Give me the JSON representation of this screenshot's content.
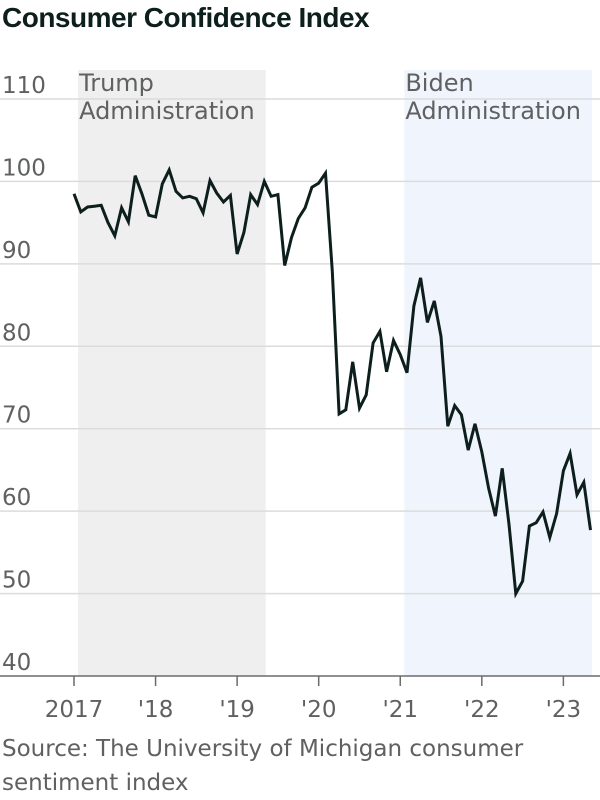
{
  "chart_data": {
    "type": "line",
    "title": "Consumer Confidence Index",
    "source": "Source: The University of Michigan consumer sentiment index",
    "ylim": [
      40,
      110
    ],
    "yticks": [
      40,
      50,
      60,
      70,
      80,
      90,
      100,
      110
    ],
    "xlim": [
      2017.0,
      2023.4
    ],
    "xticks": [
      {
        "value": 2017,
        "label": "2017"
      },
      {
        "value": 2018,
        "label": "'18"
      },
      {
        "value": 2019,
        "label": "'19"
      },
      {
        "value": 2020,
        "label": "'20"
      },
      {
        "value": 2021,
        "label": "'21"
      },
      {
        "value": 2022,
        "label": "'22"
      },
      {
        "value": 2023,
        "label": "'23"
      }
    ],
    "grid": true,
    "line_color": "#0d1f1c",
    "bands": [
      {
        "label_line1": "Trump",
        "label_line2": "Administration",
        "start": 2017.05,
        "end": 2019.35,
        "color": "#efeff0"
      },
      {
        "label_line1": "Biden",
        "label_line2": "Administration",
        "start": 2021.05,
        "end": 2023.35,
        "color": "#f0f4fc"
      }
    ],
    "series": [
      {
        "x": [
          2017.0,
          2017.083,
          2017.167,
          2017.25,
          2017.333,
          2017.417,
          2017.5,
          2017.583,
          2017.667,
          2017.75,
          2017.833,
          2017.917,
          2018.0,
          2018.083,
          2018.167,
          2018.25,
          2018.333,
          2018.417,
          2018.5,
          2018.583,
          2018.667,
          2018.75,
          2018.833,
          2018.917,
          2019.0,
          2019.083,
          2019.167,
          2019.25,
          2019.333,
          2019.417,
          2019.5,
          2019.583,
          2019.667,
          2019.75,
          2019.833,
          2019.917,
          2020.0,
          2020.083,
          2020.167,
          2020.25,
          2020.333,
          2020.417,
          2020.5,
          2020.583,
          2020.667,
          2020.75,
          2020.833,
          2020.917,
          2021.0,
          2021.083,
          2021.167,
          2021.25,
          2021.333,
          2021.417,
          2021.5,
          2021.583,
          2021.667,
          2021.75,
          2021.833,
          2021.917,
          2022.0,
          2022.083,
          2022.167,
          2022.25,
          2022.333,
          2022.417,
          2022.5,
          2022.583,
          2022.667,
          2022.75,
          2022.833,
          2022.917,
          2023.0,
          2023.083,
          2023.167,
          2023.25,
          2023.333
        ],
        "y": [
          98.5,
          96.3,
          96.9,
          97.0,
          97.1,
          95.0,
          93.4,
          96.8,
          95.1,
          100.7,
          98.5,
          95.9,
          95.7,
          99.7,
          101.4,
          98.8,
          98.0,
          98.2,
          97.9,
          96.2,
          100.1,
          98.6,
          97.5,
          98.3,
          91.2,
          93.8,
          98.4,
          97.2,
          100.0,
          98.2,
          98.4,
          89.8,
          93.2,
          95.5,
          96.8,
          99.3,
          99.8,
          101.0,
          89.1,
          71.8,
          72.3,
          78.1,
          72.5,
          74.1,
          80.4,
          81.8,
          76.9,
          80.7,
          79.0,
          76.8,
          84.9,
          88.3,
          82.9,
          85.5,
          81.2,
          70.3,
          72.8,
          71.7,
          67.4,
          70.6,
          67.2,
          62.8,
          59.4,
          65.2,
          58.4,
          50.0,
          51.5,
          58.2,
          58.6,
          59.9,
          56.8,
          59.7,
          64.9,
          67.0,
          62.0,
          63.5,
          57.7
        ]
      }
    ]
  }
}
